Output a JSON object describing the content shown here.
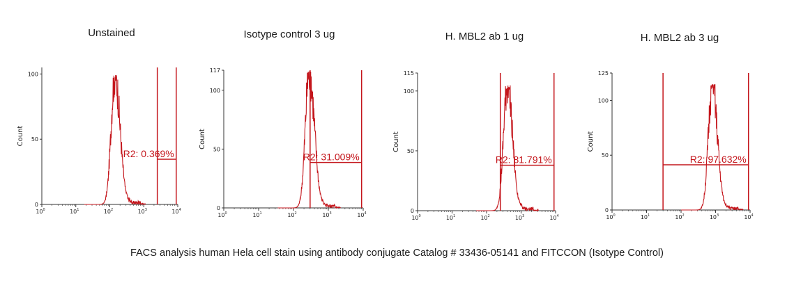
{
  "caption": "FACS analysis human Hela cell stain using antibody conjugate Catalog # 33436-05141 and FITCCON (Isotype Control)",
  "colors": {
    "histogram": "#c4161c",
    "gate": "#c4161c",
    "axis": "#333333"
  },
  "chart_data": [
    {
      "type": "histogram",
      "title": "Unstained",
      "ylabel": "Count",
      "xscale": "log",
      "xlim": [
        1,
        10000
      ],
      "ylim": [
        0,
        105
      ],
      "yticks": [
        0,
        50,
        100
      ],
      "xtick_base": "10",
      "xtick_exponents": [
        "0",
        "1",
        "2",
        "3",
        "4"
      ],
      "peak": {
        "center_log": 2.15,
        "height": 100
      },
      "gate": {
        "name": "R2",
        "from": 2500,
        "to": 9000,
        "label": "R2: 0.369%"
      }
    },
    {
      "type": "histogram",
      "title": "Isotype control 3 ug",
      "ylabel": "Count",
      "xscale": "log",
      "xlim": [
        1,
        10000
      ],
      "ylim": [
        0,
        117
      ],
      "yticks": [
        0,
        50,
        100,
        117
      ],
      "xtick_base": "10",
      "xtick_exponents": [
        "0",
        "1",
        "2",
        "3",
        "4"
      ],
      "peak": {
        "center_log": 2.45,
        "height": 117
      },
      "gate": {
        "name": "R2",
        "from": 300,
        "to": 9000,
        "label": "R2: 31.009%"
      }
    },
    {
      "type": "histogram",
      "title": "H. MBL2 ab 1 ug",
      "ylabel": "Count",
      "xscale": "log",
      "xlim": [
        1,
        10000
      ],
      "ylim": [
        0,
        115
      ],
      "yticks": [
        0,
        50,
        100,
        115
      ],
      "xtick_base": "10",
      "xtick_exponents": [
        "0",
        "1",
        "2",
        "3",
        "4"
      ],
      "peak": {
        "center_log": 2.6,
        "height": 105
      },
      "gate": {
        "name": "R2",
        "from": 250,
        "to": 9000,
        "label": "R2: 81.791%"
      }
    },
    {
      "type": "histogram",
      "title": "H. MBL2 ab 3 ug",
      "ylabel": "Count",
      "xscale": "log",
      "xlim": [
        1,
        10000
      ],
      "ylim": [
        0,
        125
      ],
      "yticks": [
        0,
        50,
        100,
        125
      ],
      "xtick_base": "10",
      "xtick_exponents": [
        "0",
        "1",
        "2",
        "3",
        "4"
      ],
      "peak": {
        "center_log": 2.9,
        "height": 115
      },
      "gate": {
        "name": "R2",
        "from": 30,
        "to": 9000,
        "label": "R2: 97.632%"
      }
    }
  ]
}
